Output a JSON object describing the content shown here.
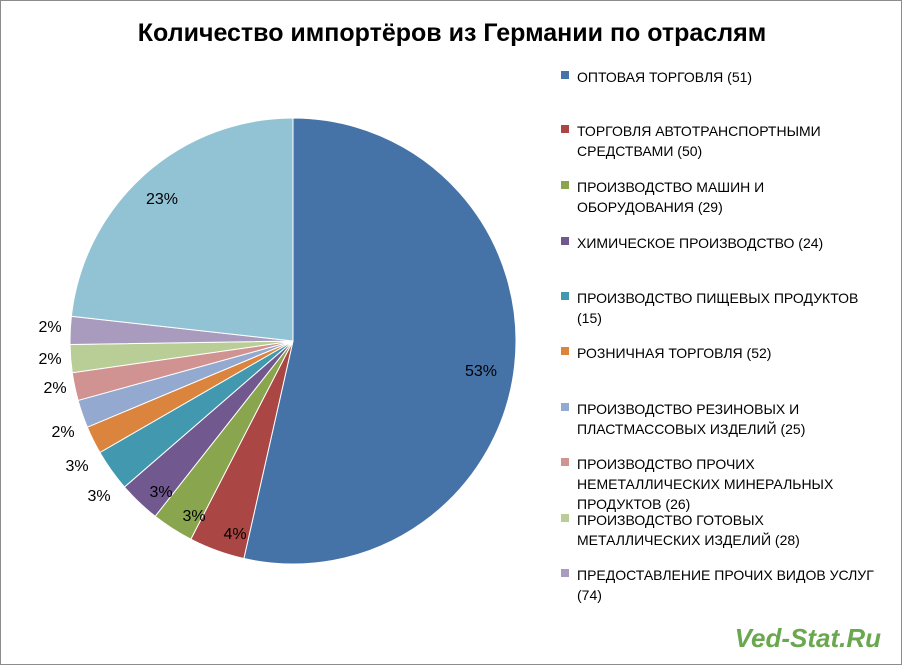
{
  "chart_data": {
    "type": "pie",
    "title": "Количество импортёров из Германии по отраслям",
    "series": [
      {
        "name": "ОПТОВАЯ ТОРГОВЛЯ  (51)",
        "value": 51,
        "label": "53%",
        "color": "#4572a7"
      },
      {
        "name": "ТОРГОВЛЯ АВТОТРАНСПОРТНЫМИ СРЕДСТВАМИ  (50)",
        "value": 50,
        "label": "4%",
        "color": "#aa4643"
      },
      {
        "name": "ПРОИЗВОДСТВО МАШИН И ОБОРУДОВАНИЯ (29)",
        "value": 29,
        "label": "3%",
        "color": "#89a54e"
      },
      {
        "name": "ХИМИЧЕСКОЕ ПРОИЗВОДСТВО (24)",
        "value": 24,
        "label": "3%",
        "color": "#71588f"
      },
      {
        "name": "ПРОИЗВОДСТВО ПИЩЕВЫХ ПРОДУКТОВ (15)",
        "value": 15,
        "label": "3%",
        "color": "#4198af"
      },
      {
        "name": "РОЗНИЧНАЯ ТОРГОВЛЯ (52)",
        "value": 52,
        "label": "2%",
        "color": "#db843d"
      },
      {
        "name": "ПРОИЗВОДСТВО РЕЗИНОВЫХ И ПЛАСТМАССОВЫХ ИЗДЕЛИЙ (25)",
        "value": 25,
        "label": "2%",
        "color": "#93a9cf"
      },
      {
        "name": "ПРОИЗВОДСТВО ПРОЧИХ НЕМЕТАЛЛИЧЕСКИХ МИНЕРАЛЬНЫХ ПРОДУКТОВ (26)",
        "value": 26,
        "label": "2%",
        "color": "#d19392"
      },
      {
        "name": "ПРОИЗВОДСТВО ГОТОВЫХ МЕТАЛЛИЧЕСКИХ ИЗДЕЛИЙ (28)",
        "value": 28,
        "label": "2%",
        "color": "#b9cd96"
      },
      {
        "name": "ПРЕДОСТАВЛЕНИЕ ПРОЧИХ ВИДОВ УСЛУГ (74)",
        "value": 74,
        "label": "23%",
        "color": "#a99bbd"
      },
      {
        "name": "",
        "value": null,
        "label": "",
        "color": "#92c3d4"
      }
    ],
    "slice_percent": [
      53,
      4,
      3,
      3,
      3,
      2,
      2,
      2,
      2,
      2,
      23
    ],
    "legend_placement": "right"
  },
  "watermark": "Ved-Stat.Ru"
}
